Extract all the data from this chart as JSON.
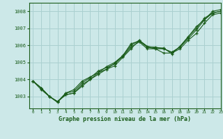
{
  "title": "Graphe pression niveau de la mer (hPa)",
  "bg_color": "#cce8e8",
  "grid_color": "#aad0d0",
  "line_color": "#1a5c1a",
  "xlim": [
    -0.5,
    23
  ],
  "ylim": [
    1002.3,
    1008.5
  ],
  "xticks": [
    0,
    1,
    2,
    3,
    4,
    5,
    6,
    7,
    8,
    9,
    10,
    11,
    12,
    13,
    14,
    15,
    16,
    17,
    18,
    19,
    20,
    21,
    22,
    23
  ],
  "yticks": [
    1003,
    1004,
    1005,
    1006,
    1007,
    1008
  ],
  "series": [
    [
      1003.9,
      1003.5,
      1003.0,
      1002.7,
      1003.1,
      1003.2,
      1003.7,
      1004.0,
      1004.3,
      1004.6,
      1004.8,
      1005.3,
      1005.8,
      1006.3,
      1005.9,
      1005.9,
      1005.8,
      1005.6,
      1005.9,
      1006.4,
      1006.9,
      1007.5,
      1007.9,
      1008.0
    ],
    [
      1003.9,
      1003.5,
      1003.0,
      1002.7,
      1003.2,
      1003.3,
      1003.8,
      1004.1,
      1004.5,
      1004.7,
      1004.9,
      1005.4,
      1006.1,
      1006.25,
      1005.9,
      1005.8,
      1005.8,
      1005.6,
      1005.9,
      1006.5,
      1007.0,
      1007.6,
      1007.9,
      1008.0
    ],
    [
      1003.9,
      1003.5,
      1003.0,
      1002.7,
      1003.1,
      1003.2,
      1003.6,
      1004.0,
      1004.4,
      1004.6,
      1004.95,
      1005.35,
      1005.9,
      1006.2,
      1005.8,
      1005.8,
      1005.55,
      1005.55,
      1005.8,
      1006.3,
      1006.7,
      1007.3,
      1007.8,
      1007.9
    ],
    [
      1003.9,
      1003.4,
      1003.0,
      1002.65,
      1003.2,
      1003.4,
      1003.9,
      1004.15,
      1004.4,
      1004.75,
      1005.0,
      1005.4,
      1006.0,
      1006.3,
      1005.95,
      1005.85,
      1005.85,
      1005.5,
      1005.95,
      1006.5,
      1007.1,
      1007.5,
      1008.0,
      1008.1
    ]
  ]
}
